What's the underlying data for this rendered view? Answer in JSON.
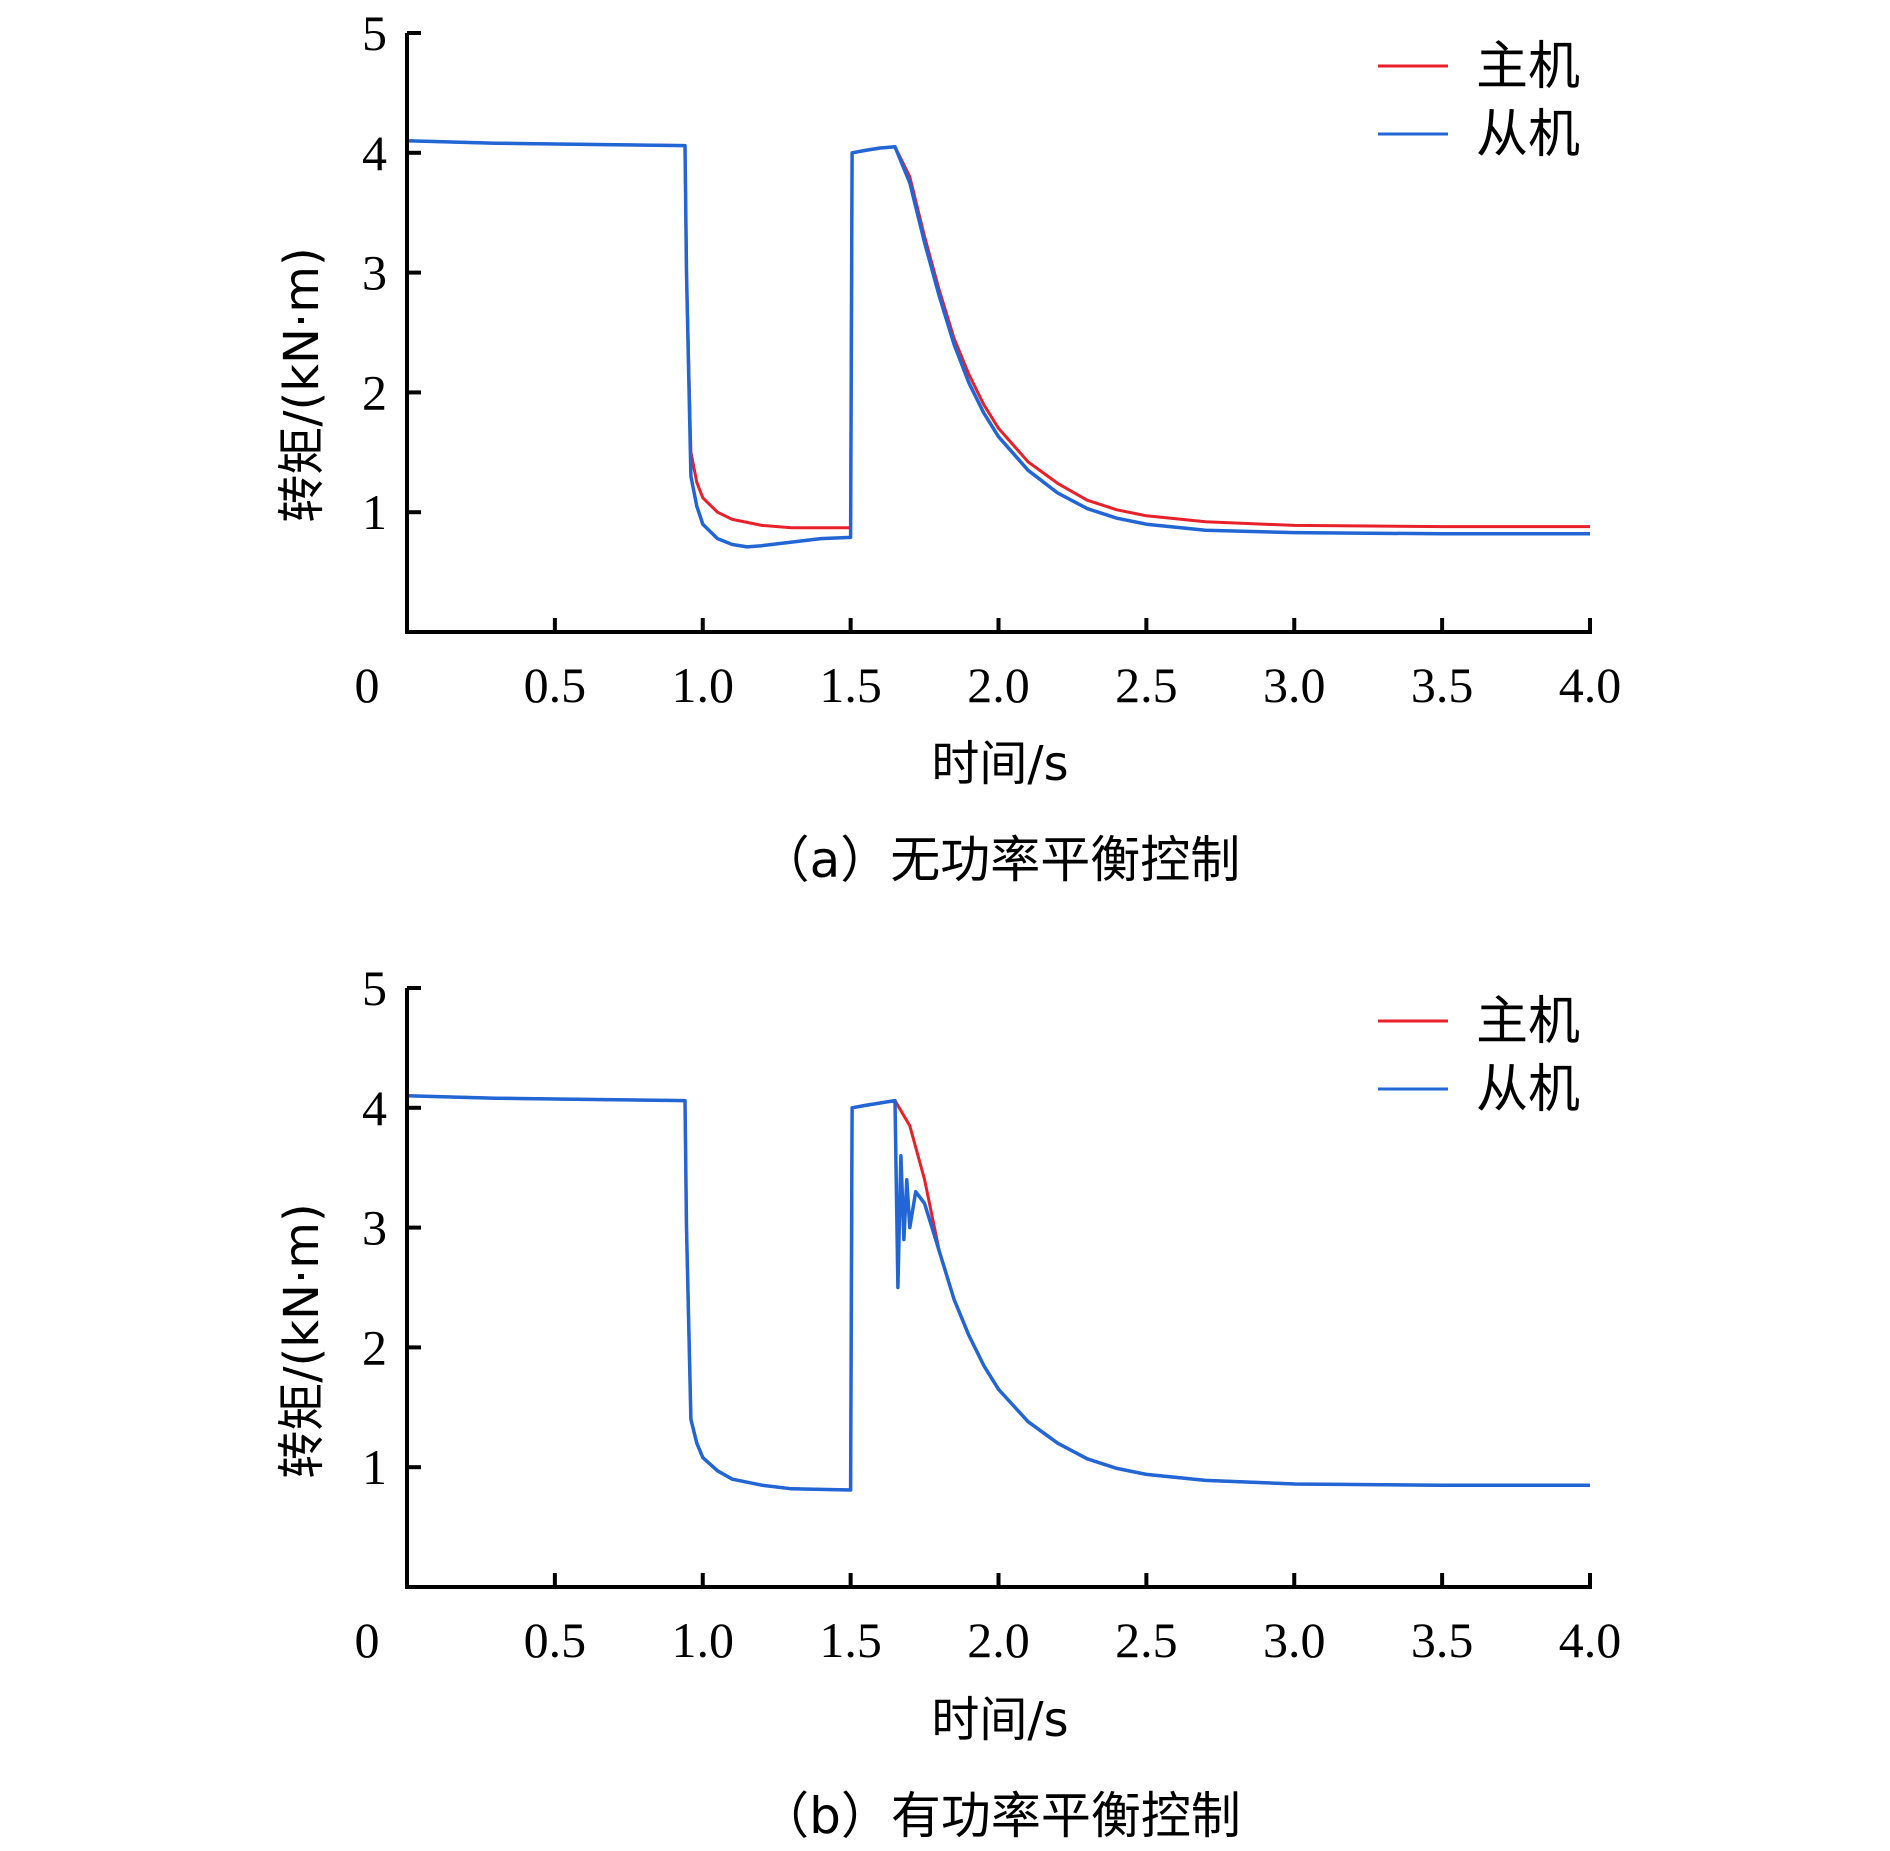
{
  "chart_data": [
    {
      "type": "line",
      "caption": "（a）无功率平衡控制",
      "xlabel": "时间/s",
      "ylabel": "转矩/(kN·m)",
      "xlim": [
        0,
        4.0
      ],
      "ylim": [
        0,
        5
      ],
      "xticks": [
        "0",
        "0.5",
        "1.0",
        "1.5",
        "2.0",
        "2.5",
        "3.0",
        "3.5",
        "4.0"
      ],
      "yticks": [
        "1",
        "2",
        "3",
        "4",
        "5"
      ],
      "legend": "top-right",
      "grid": false,
      "series": [
        {
          "name": "主机",
          "color": "#e8202a",
          "x": [
            0,
            0.3,
            0.6,
            0.94,
            0.945,
            0.96,
            0.98,
            1.0,
            1.05,
            1.1,
            1.2,
            1.3,
            1.5,
            1.505,
            1.55,
            1.6,
            1.65,
            1.7,
            1.75,
            1.8,
            1.85,
            1.9,
            1.95,
            2.0,
            2.1,
            2.2,
            2.3,
            2.4,
            2.5,
            2.7,
            3.0,
            3.5,
            4.0
          ],
          "y": [
            4.1,
            4.08,
            4.07,
            4.06,
            3.0,
            1.5,
            1.25,
            1.12,
            1.0,
            0.94,
            0.89,
            0.87,
            0.87,
            4.0,
            4.02,
            4.04,
            4.05,
            3.8,
            3.3,
            2.85,
            2.45,
            2.15,
            1.9,
            1.7,
            1.42,
            1.24,
            1.1,
            1.02,
            0.97,
            0.92,
            0.89,
            0.88,
            0.88
          ]
        },
        {
          "name": "从机",
          "color": "#2266d6",
          "x": [
            0,
            0.3,
            0.6,
            0.94,
            0.945,
            0.96,
            0.98,
            1.0,
            1.05,
            1.1,
            1.15,
            1.2,
            1.3,
            1.4,
            1.5,
            1.505,
            1.55,
            1.6,
            1.65,
            1.7,
            1.75,
            1.8,
            1.85,
            1.9,
            1.95,
            2.0,
            2.1,
            2.2,
            2.3,
            2.4,
            2.5,
            2.7,
            3.0,
            3.5,
            4.0
          ],
          "y": [
            4.1,
            4.08,
            4.07,
            4.06,
            3.0,
            1.3,
            1.05,
            0.9,
            0.78,
            0.73,
            0.71,
            0.72,
            0.75,
            0.78,
            0.79,
            4.0,
            4.02,
            4.04,
            4.05,
            3.75,
            3.25,
            2.8,
            2.4,
            2.08,
            1.83,
            1.63,
            1.35,
            1.16,
            1.03,
            0.95,
            0.9,
            0.85,
            0.83,
            0.82,
            0.82
          ]
        }
      ]
    },
    {
      "type": "line",
      "caption": "（b）有功率平衡控制",
      "xlabel": "时间/s",
      "ylabel": "转矩/(kN·m)",
      "xlim": [
        0,
        4.0
      ],
      "ylim": [
        0,
        5
      ],
      "xticks": [
        "0",
        "0.5",
        "1.0",
        "1.5",
        "2.0",
        "2.5",
        "3.0",
        "3.5",
        "4.0"
      ],
      "yticks": [
        "1",
        "2",
        "3",
        "4",
        "5"
      ],
      "legend": "top-right",
      "grid": false,
      "series": [
        {
          "name": "主机",
          "color": "#e8202a",
          "x": [
            0,
            0.3,
            0.6,
            0.94,
            0.945,
            0.96,
            0.98,
            1.0,
            1.05,
            1.1,
            1.2,
            1.3,
            1.5,
            1.505,
            1.55,
            1.6,
            1.65,
            1.7,
            1.75,
            1.8,
            1.85,
            1.9,
            1.95,
            2.0,
            2.1,
            2.2,
            2.3,
            2.4,
            2.5,
            2.7,
            3.0,
            3.5,
            4.0
          ],
          "y": [
            4.1,
            4.08,
            4.07,
            4.06,
            3.0,
            1.4,
            1.2,
            1.08,
            0.97,
            0.9,
            0.85,
            0.82,
            0.81,
            4.0,
            4.02,
            4.04,
            4.06,
            3.85,
            3.4,
            2.8,
            2.4,
            2.1,
            1.85,
            1.65,
            1.38,
            1.2,
            1.07,
            0.99,
            0.94,
            0.89,
            0.86,
            0.85,
            0.85
          ]
        },
        {
          "name": "从机",
          "color": "#2266d6",
          "x": [
            0,
            0.3,
            0.6,
            0.94,
            0.945,
            0.96,
            0.98,
            1.0,
            1.05,
            1.1,
            1.2,
            1.3,
            1.5,
            1.505,
            1.55,
            1.6,
            1.65,
            1.66,
            1.67,
            1.68,
            1.69,
            1.7,
            1.72,
            1.75,
            1.8,
            1.85,
            1.9,
            1.95,
            2.0,
            2.1,
            2.2,
            2.3,
            2.4,
            2.5,
            2.7,
            3.0,
            3.5,
            4.0
          ],
          "y": [
            4.1,
            4.08,
            4.07,
            4.06,
            3.0,
            1.4,
            1.2,
            1.08,
            0.97,
            0.9,
            0.85,
            0.82,
            0.81,
            4.0,
            4.02,
            4.04,
            4.06,
            2.5,
            3.6,
            2.9,
            3.4,
            3.0,
            3.3,
            3.2,
            2.8,
            2.4,
            2.1,
            1.85,
            1.65,
            1.38,
            1.2,
            1.07,
            0.99,
            0.94,
            0.89,
            0.86,
            0.85,
            0.85
          ]
        }
      ]
    }
  ]
}
